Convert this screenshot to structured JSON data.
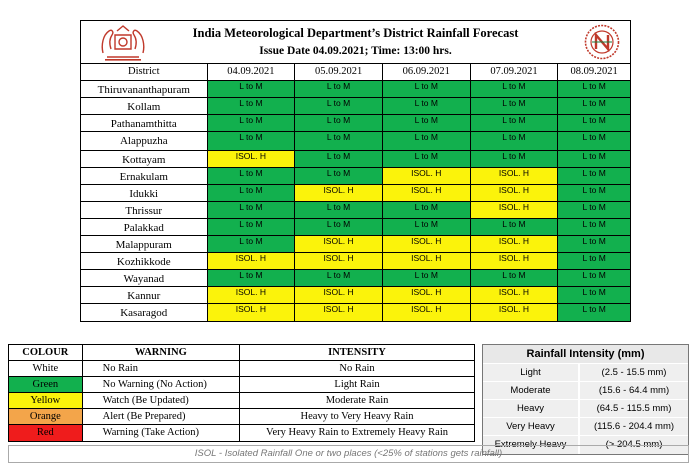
{
  "header": {
    "title": "India Meteorological Department’s District Rainfall Forecast",
    "issue": "Issue Date 04.09.2021; Time: 13:00 hrs."
  },
  "table": {
    "district_header": "District",
    "dates": [
      "04.09.2021",
      "05.09.2021",
      "06.09.2021",
      "07.09.2021",
      "08.09.2021"
    ],
    "rows": [
      {
        "district": "Thiruvananthapuram",
        "cells": [
          {
            "t": "L to M",
            "c": "green"
          },
          {
            "t": "L to M",
            "c": "green"
          },
          {
            "t": "L to M",
            "c": "green"
          },
          {
            "t": "L to M",
            "c": "green"
          },
          {
            "t": "L to M",
            "c": "green"
          }
        ]
      },
      {
        "district": "Kollam",
        "cells": [
          {
            "t": "L to M",
            "c": "green"
          },
          {
            "t": "L to M",
            "c": "green"
          },
          {
            "t": "L to M",
            "c": "green"
          },
          {
            "t": "L to M",
            "c": "green"
          },
          {
            "t": "L to M",
            "c": "green"
          }
        ]
      },
      {
        "district": "Pathanamthitta",
        "cells": [
          {
            "t": "L to M",
            "c": "green"
          },
          {
            "t": "L to M",
            "c": "green"
          },
          {
            "t": "L to M",
            "c": "green"
          },
          {
            "t": "L to M",
            "c": "green"
          },
          {
            "t": "L to M",
            "c": "green"
          }
        ]
      },
      {
        "district": "Alappuzha",
        "cells": [
          {
            "t": "L to M",
            "c": "green"
          },
          {
            "t": "L to M",
            "c": "green"
          },
          {
            "t": "L to M",
            "c": "green"
          },
          {
            "t": "L to M",
            "c": "green"
          },
          {
            "t": "L to M",
            "c": "green"
          }
        ]
      },
      {
        "district": "Kottayam",
        "cells": [
          {
            "t": "ISOL. H",
            "c": "yellow"
          },
          {
            "t": "L to M",
            "c": "green"
          },
          {
            "t": "L to M",
            "c": "green"
          },
          {
            "t": "L to M",
            "c": "green"
          },
          {
            "t": "L to M",
            "c": "green"
          }
        ]
      },
      {
        "district": "Ernakulam",
        "cells": [
          {
            "t": "L to M",
            "c": "green"
          },
          {
            "t": "L to M",
            "c": "green"
          },
          {
            "t": "ISOL. H",
            "c": "yellow"
          },
          {
            "t": "ISOL. H",
            "c": "yellow"
          },
          {
            "t": "L to M",
            "c": "green"
          }
        ]
      },
      {
        "district": "Idukki",
        "cells": [
          {
            "t": "L to M",
            "c": "green"
          },
          {
            "t": "ISOL. H",
            "c": "yellow"
          },
          {
            "t": "ISOL. H",
            "c": "yellow"
          },
          {
            "t": "ISOL. H",
            "c": "yellow"
          },
          {
            "t": "L to M",
            "c": "green"
          }
        ]
      },
      {
        "district": "Thrissur",
        "cells": [
          {
            "t": "L to M",
            "c": "green"
          },
          {
            "t": "L to M",
            "c": "green"
          },
          {
            "t": "L to M",
            "c": "green"
          },
          {
            "t": "ISOL. H",
            "c": "yellow"
          },
          {
            "t": "L to M",
            "c": "green"
          }
        ]
      },
      {
        "district": "Palakkad",
        "cells": [
          {
            "t": "L to M",
            "c": "green"
          },
          {
            "t": "L to M",
            "c": "green"
          },
          {
            "t": "L to M",
            "c": "green"
          },
          {
            "t": "L to M",
            "c": "green"
          },
          {
            "t": "L to M",
            "c": "green"
          }
        ]
      },
      {
        "district": "Malappuram",
        "cells": [
          {
            "t": "L to M",
            "c": "green"
          },
          {
            "t": "ISOL. H",
            "c": "yellow"
          },
          {
            "t": "ISOL. H",
            "c": "yellow"
          },
          {
            "t": "ISOL. H",
            "c": "yellow"
          },
          {
            "t": "L to M",
            "c": "green"
          }
        ]
      },
      {
        "district": "Kozhikkode",
        "cells": [
          {
            "t": "ISOL. H",
            "c": "yellow"
          },
          {
            "t": "ISOL. H",
            "c": "yellow"
          },
          {
            "t": "ISOL. H",
            "c": "yellow"
          },
          {
            "t": "ISOL. H",
            "c": "yellow"
          },
          {
            "t": "L to M",
            "c": "green"
          }
        ]
      },
      {
        "district": "Wayanad",
        "cells": [
          {
            "t": "L to M",
            "c": "green"
          },
          {
            "t": "L to M",
            "c": "green"
          },
          {
            "t": "L to M",
            "c": "green"
          },
          {
            "t": "L to M",
            "c": "green"
          },
          {
            "t": "L to M",
            "c": "green"
          }
        ]
      },
      {
        "district": "Kannur",
        "cells": [
          {
            "t": "ISOL. H",
            "c": "yellow"
          },
          {
            "t": "ISOL. H",
            "c": "yellow"
          },
          {
            "t": "ISOL. H",
            "c": "yellow"
          },
          {
            "t": "ISOL. H",
            "c": "yellow"
          },
          {
            "t": "L to M",
            "c": "green"
          }
        ]
      },
      {
        "district": "Kasaragod",
        "cells": [
          {
            "t": "ISOL. H",
            "c": "yellow"
          },
          {
            "t": "ISOL. H",
            "c": "yellow"
          },
          {
            "t": "ISOL. H",
            "c": "yellow"
          },
          {
            "t": "ISOL. H",
            "c": "yellow"
          },
          {
            "t": "L to M",
            "c": "green"
          }
        ]
      }
    ]
  },
  "colors": {
    "green": "#12b04e",
    "yellow": "#fbf30b",
    "orange": "#f3a54a",
    "red": "#ef1c1c",
    "white": "#ffffff"
  },
  "legend": {
    "headers": {
      "code": "COLOUR CODE",
      "warning": "WARNING",
      "intensity": "INTENSITY"
    },
    "rows": [
      {
        "code": "White",
        "color": "white",
        "warning": "No Rain",
        "intensity": "No Rain"
      },
      {
        "code": "Green",
        "color": "green",
        "warning": "No Warning (No Action)",
        "intensity": "Light Rain"
      },
      {
        "code": "Yellow",
        "color": "yellow",
        "warning": "Watch (Be Updated)",
        "intensity": "Moderate Rain"
      },
      {
        "code": "Orange",
        "color": "orange",
        "warning": "Alert (Be Prepared)",
        "intensity": "Heavy to Very Heavy Rain"
      },
      {
        "code": "Red",
        "color": "red",
        "warning": "Warning (Take Action)",
        "intensity": "Very Heavy Rain to Extremely Heavy Rain"
      }
    ]
  },
  "rainfall": {
    "title": "Rainfall Intensity (mm)",
    "rows": [
      {
        "label": "Light",
        "range": "(2.5 - 15.5 mm)"
      },
      {
        "label": "Moderate",
        "range": "(15.6 - 64.4 mm)"
      },
      {
        "label": "Heavy",
        "range": "(64.5 - 115.5 mm)"
      },
      {
        "label": "Very Heavy",
        "range": "(115.6 - 204.4 mm)"
      },
      {
        "label": "Extremely Heavy",
        "range": "(> 204.5 mm)"
      }
    ]
  },
  "note": "ISOL - Isolated Rainfall One or two places (<25% of stations gets rainfall)"
}
